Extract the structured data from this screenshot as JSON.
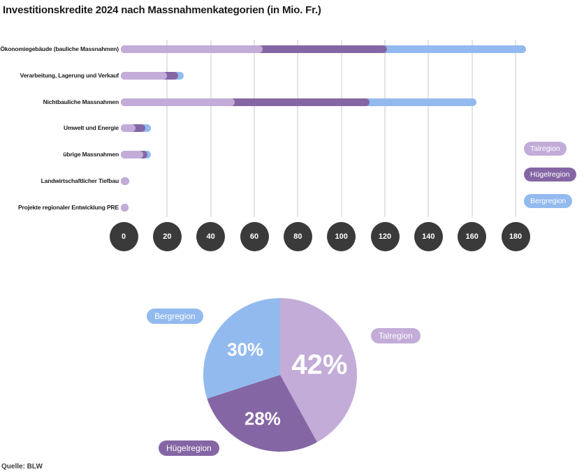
{
  "title": "Investitionskredite 2024 nach Massnahmenkategorien (in Mio. Fr.)",
  "source": "Quelle: BLW",
  "colors": {
    "talregion": "#c3acd8",
    "huegelregion": "#8566a4",
    "bergregion": "#92baef",
    "tick_circle_bg": "#3a3a3a",
    "tick_circle_text": "#ffffff",
    "gridline": "#e4e4e4"
  },
  "legend": [
    {
      "label": "Talregion",
      "color_key": "talregion"
    },
    {
      "label": "Hügelregion",
      "color_key": "huegelregion"
    },
    {
      "label": "Bergregion",
      "color_key": "bergregion"
    }
  ],
  "chart_data": [
    {
      "type": "bar",
      "orientation": "horizontal",
      "stacked": true,
      "unit": "Mio. Fr.",
      "categories": [
        "Ökonomiegebäude (bauliche Massnahmen)",
        "Verarbeitung, Lagerung und Verkauf",
        "Nichtbauliche Massnahmen",
        "Umwelt und Energie",
        "übrige Massnahmen",
        "Landwirtschaftlicher Tiefbau",
        "Projekte regionaler Entwicklung PRE"
      ],
      "series": [
        {
          "name": "Talregion",
          "color_key": "talregion",
          "values": [
            63,
            19,
            50,
            4.5,
            8,
            0.8,
            0.7
          ]
        },
        {
          "name": "Hügelregion",
          "color_key": "huegelregion",
          "values": [
            57,
            5,
            62,
            4.5,
            2,
            0.3,
            0.2
          ]
        },
        {
          "name": "Bergregion",
          "color_key": "bergregion",
          "values": [
            64,
            2.5,
            49,
            2.5,
            1.5,
            0.4,
            0.3
          ]
        }
      ],
      "xlim": [
        0,
        180
      ],
      "xticks": [
        0,
        20,
        40,
        60,
        80,
        100,
        120,
        140,
        160,
        180
      ],
      "grid": true,
      "legend_position": "right"
    },
    {
      "type": "pie",
      "labels": [
        "Talregion",
        "Hügelregion",
        "Bergregion"
      ],
      "color_keys": [
        "talregion",
        "huegelregion",
        "bergregion"
      ],
      "values": [
        42,
        28,
        30
      ],
      "unit": "%",
      "slice_text": [
        "42%",
        "28%",
        "30%"
      ],
      "start_angle_deg": 0,
      "direction": "clockwise"
    }
  ]
}
